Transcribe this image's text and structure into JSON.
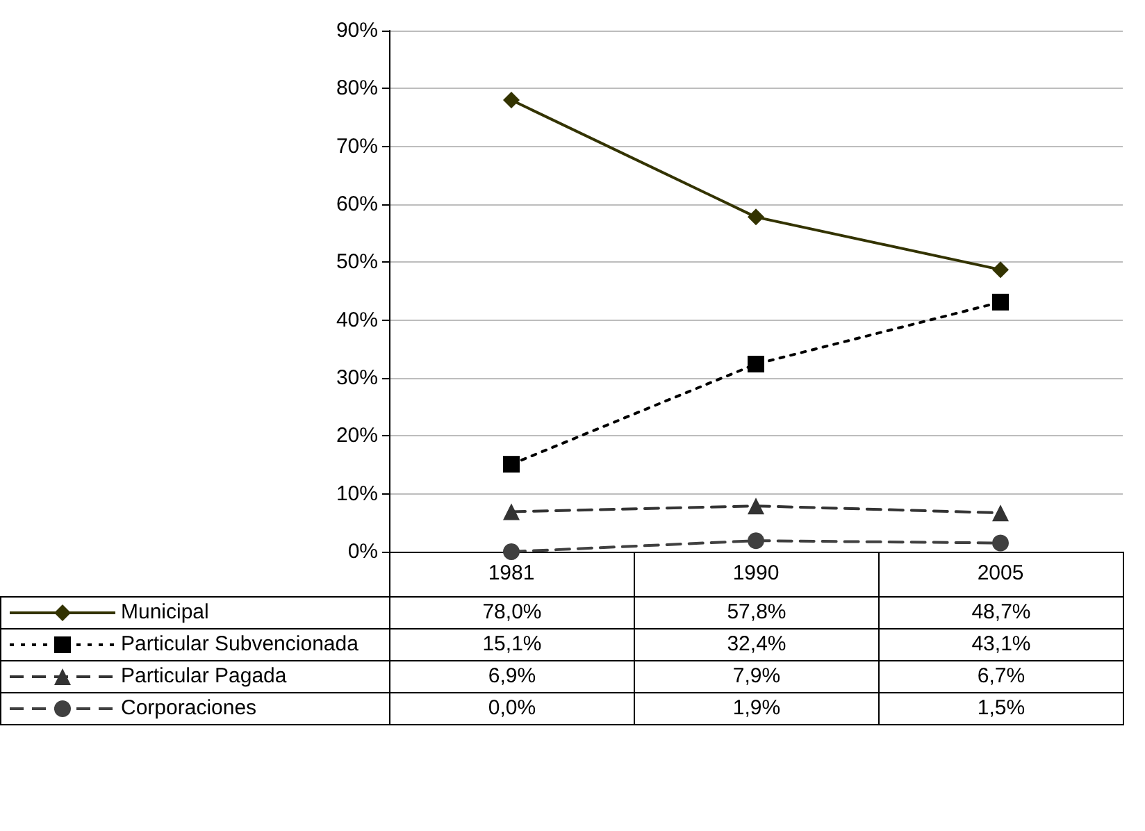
{
  "chart_data": {
    "type": "line",
    "categories": [
      "1981",
      "1990",
      "2005"
    ],
    "series": [
      {
        "name": "Municipal",
        "color": "#333300",
        "marker": "diamond",
        "line_style": "solid",
        "values": [
          78.0,
          57.8,
          48.7
        ],
        "value_labels": [
          "78,0%",
          "57,8%",
          "48,7%"
        ]
      },
      {
        "name": "Particular Subvencionada",
        "color": "#000000",
        "marker": "square",
        "line_style": "dotted",
        "values": [
          15.1,
          32.4,
          43.1
        ],
        "value_labels": [
          "15,1%",
          "32,4%",
          "43,1%"
        ]
      },
      {
        "name": "Particular Pagada",
        "color": "#333333",
        "marker": "triangle",
        "line_style": "dashed",
        "values": [
          6.9,
          7.9,
          6.7
        ],
        "value_labels": [
          "6,9%",
          "7,9%",
          "6,7%"
        ]
      },
      {
        "name": "Corporaciones",
        "color": "#404040",
        "marker": "circle",
        "line_style": "dashed",
        "values": [
          0.0,
          1.9,
          1.5
        ],
        "value_labels": [
          "0,0%",
          "1,9%",
          "1,5%"
        ]
      }
    ],
    "ylim": [
      0,
      90
    ],
    "yticks": [
      {
        "value": 0,
        "label": "0%"
      },
      {
        "value": 10,
        "label": "10%"
      },
      {
        "value": 20,
        "label": "20%"
      },
      {
        "value": 30,
        "label": "30%"
      },
      {
        "value": 40,
        "label": "40%"
      },
      {
        "value": 50,
        "label": "50%"
      },
      {
        "value": 60,
        "label": "60%"
      },
      {
        "value": 70,
        "label": "70%"
      },
      {
        "value": 80,
        "label": "80%"
      },
      {
        "value": 90,
        "label": "90%"
      }
    ],
    "grid": "y",
    "legend": "bottom"
  }
}
